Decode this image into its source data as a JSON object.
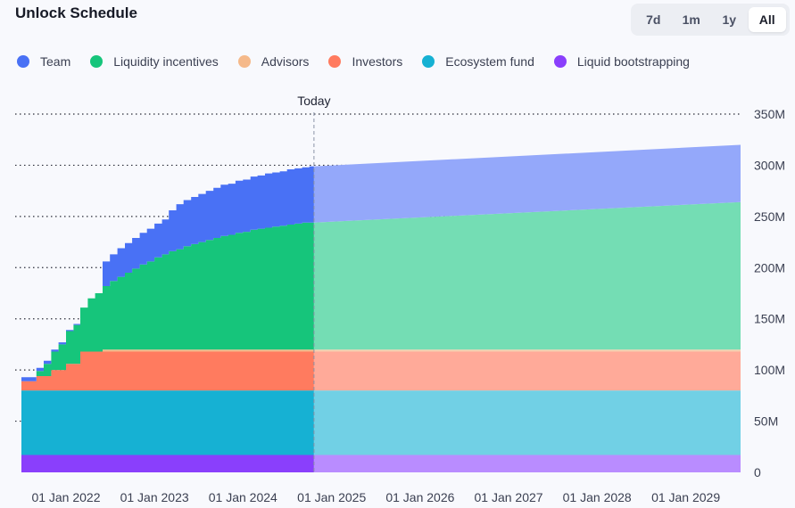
{
  "title": "Unlock Schedule",
  "range_buttons": [
    {
      "label": "7d",
      "active": false
    },
    {
      "label": "1m",
      "active": false
    },
    {
      "label": "1y",
      "active": false
    },
    {
      "label": "All",
      "active": true
    }
  ],
  "chart_data": {
    "type": "area",
    "stacked": true,
    "stepped_before_today": true,
    "today_label": "Today",
    "today_date": "2024-10-20",
    "x_range": [
      "2021-07-01",
      "2029-08-15"
    ],
    "ylim": [
      0,
      350
    ],
    "y_ticks": [
      0,
      50,
      100,
      150,
      200,
      250,
      300,
      350
    ],
    "y_tick_labels": [
      "0",
      "50M",
      "100M",
      "150M",
      "200M",
      "250M",
      "300M",
      "350M"
    ],
    "x_tick_labels": [
      {
        "date": "2022-01-01",
        "label": "01 Jan 2022"
      },
      {
        "date": "2023-01-01",
        "label": "01 Jan 2023"
      },
      {
        "date": "2024-01-01",
        "label": "01 Jan 2024"
      },
      {
        "date": "2025-01-01",
        "label": "01 Jan 2025"
      },
      {
        "date": "2026-01-01",
        "label": "01 Jan 2026"
      },
      {
        "date": "2027-01-01",
        "label": "01 Jan 2027"
      },
      {
        "date": "2028-01-01",
        "label": "01 Jan 2028"
      },
      {
        "date": "2029-01-01",
        "label": "01 Jan 2029"
      }
    ],
    "grid": true,
    "legend_position": "top-left",
    "series": [
      {
        "name": "Liquid bootstrapping",
        "color": "#8a3ffc",
        "future_color": "#b98cff",
        "points": [
          [
            "2021-07-01",
            17
          ],
          [
            "2029-08-15",
            17
          ]
        ]
      },
      {
        "name": "Ecosystem fund",
        "color": "#16b1d3",
        "future_color": "#71d0e5",
        "points": [
          [
            "2021-07-01",
            63
          ],
          [
            "2029-08-15",
            63
          ]
        ]
      },
      {
        "name": "Investors",
        "color": "#ff7b5f",
        "future_color": "#ffaa99",
        "points": [
          [
            "2021-07-01",
            9
          ],
          [
            "2021-08-01",
            9
          ],
          [
            "2021-09-01",
            14
          ],
          [
            "2021-11-01",
            20
          ],
          [
            "2022-01-01",
            26
          ],
          [
            "2022-03-01",
            38
          ],
          [
            "2029-08-15",
            38
          ]
        ]
      },
      {
        "name": "Advisors",
        "color": "#f5b98a",
        "future_color": "#f7cfae",
        "points": [
          [
            "2021-07-01",
            0
          ],
          [
            "2022-03-01",
            0
          ],
          [
            "2022-06-01",
            2
          ],
          [
            "2029-08-15",
            2
          ]
        ]
      },
      {
        "name": "Liquidity incentives",
        "color": "#16c57b",
        "future_color": "#74ddb4",
        "points": [
          [
            "2021-07-01",
            0
          ],
          [
            "2021-08-01",
            0
          ],
          [
            "2021-09-01",
            5
          ],
          [
            "2021-10-01",
            12
          ],
          [
            "2021-11-01",
            18
          ],
          [
            "2021-12-01",
            25
          ],
          [
            "2022-01-01",
            32
          ],
          [
            "2022-02-01",
            38
          ],
          [
            "2022-03-01",
            43
          ],
          [
            "2022-04-01",
            52
          ],
          [
            "2022-05-01",
            57
          ],
          [
            "2022-06-01",
            62
          ],
          [
            "2022-07-01",
            67
          ],
          [
            "2022-08-01",
            71
          ],
          [
            "2022-09-01",
            75
          ],
          [
            "2022-10-01",
            79
          ],
          [
            "2022-11-01",
            83
          ],
          [
            "2022-12-01",
            86
          ],
          [
            "2023-01-01",
            90
          ],
          [
            "2023-02-01",
            93
          ],
          [
            "2023-03-01",
            96
          ],
          [
            "2023-04-01",
            98
          ],
          [
            "2023-05-01",
            101
          ],
          [
            "2023-06-01",
            103
          ],
          [
            "2023-07-01",
            105
          ],
          [
            "2023-08-01",
            107
          ],
          [
            "2023-09-01",
            109
          ],
          [
            "2023-10-01",
            111
          ],
          [
            "2023-11-01",
            112
          ],
          [
            "2023-12-01",
            114
          ],
          [
            "2024-01-01",
            115
          ],
          [
            "2024-02-01",
            117
          ],
          [
            "2024-03-01",
            118
          ],
          [
            "2024-04-01",
            119
          ],
          [
            "2024-05-01",
            120
          ],
          [
            "2024-06-01",
            121
          ],
          [
            "2024-07-01",
            122
          ],
          [
            "2024-08-01",
            123
          ],
          [
            "2024-09-01",
            124
          ],
          [
            "2024-10-01",
            124
          ],
          [
            "2024-10-20",
            124
          ],
          [
            "2029-08-15",
            144
          ]
        ]
      },
      {
        "name": "Team",
        "color": "#4971f5",
        "future_color": "#94a8fa",
        "points": [
          [
            "2021-07-01",
            4
          ],
          [
            "2021-08-01",
            4
          ],
          [
            "2021-09-01",
            3
          ],
          [
            "2021-11-01",
            2
          ],
          [
            "2022-01-01",
            1
          ],
          [
            "2022-03-01",
            0
          ],
          [
            "2022-04-01",
            0
          ],
          [
            "2022-06-01",
            24
          ],
          [
            "2022-07-01",
            26
          ],
          [
            "2022-08-01",
            28
          ],
          [
            "2022-09-01",
            29
          ],
          [
            "2022-10-01",
            30
          ],
          [
            "2022-11-01",
            31
          ],
          [
            "2022-12-01",
            32
          ],
          [
            "2023-01-01",
            33
          ],
          [
            "2023-02-01",
            34
          ],
          [
            "2023-03-01",
            40
          ],
          [
            "2023-04-01",
            44
          ],
          [
            "2023-05-01",
            45
          ],
          [
            "2023-06-01",
            46
          ],
          [
            "2023-07-01",
            47
          ],
          [
            "2023-08-01",
            48
          ],
          [
            "2023-09-01",
            49
          ],
          [
            "2023-10-01",
            50
          ],
          [
            "2023-11-01",
            50
          ],
          [
            "2023-12-01",
            51
          ],
          [
            "2024-01-01",
            51
          ],
          [
            "2024-02-01",
            52
          ],
          [
            "2024-03-01",
            52
          ],
          [
            "2024-04-01",
            53
          ],
          [
            "2024-05-01",
            53
          ],
          [
            "2024-06-01",
            53
          ],
          [
            "2024-07-01",
            54
          ],
          [
            "2024-08-01",
            54
          ],
          [
            "2024-09-01",
            54
          ],
          [
            "2024-10-01",
            55
          ],
          [
            "2024-10-20",
            55
          ],
          [
            "2029-08-15",
            56
          ]
        ]
      }
    ]
  }
}
